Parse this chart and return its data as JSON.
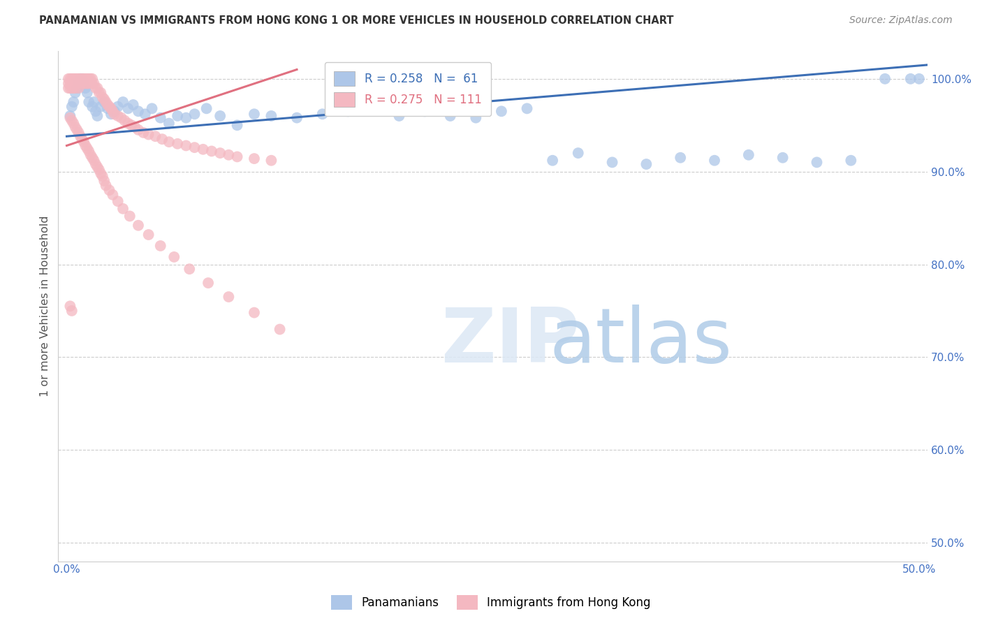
{
  "title": "PANAMANIAN VS IMMIGRANTS FROM HONG KONG 1 OR MORE VEHICLES IN HOUSEHOLD CORRELATION CHART",
  "source": "Source: ZipAtlas.com",
  "ylabel": "1 or more Vehicles in Household",
  "xmin": -0.005,
  "xmax": 0.505,
  "ymin": 0.48,
  "ymax": 1.03,
  "xticks": [
    0.0,
    0.1,
    0.2,
    0.3,
    0.4,
    0.5
  ],
  "xtick_labels": [
    "0.0%",
    "",
    "",
    "",
    "",
    "50.0%"
  ],
  "ytick_positions": [
    1.0,
    0.9,
    0.8,
    0.7,
    0.6,
    0.5
  ],
  "ytick_labels": [
    "100.0%",
    "90.0%",
    "80.0%",
    "70.0%",
    "60.0%",
    "50.0%"
  ],
  "legend_label_blue": "Panamanians",
  "legend_label_pink": "Immigrants from Hong Kong",
  "title_color": "#333333",
  "source_color": "#888888",
  "tick_color": "#4472c4",
  "blue_scatter_color": "#adc6e8",
  "pink_scatter_color": "#f4b8c1",
  "blue_line_color": "#3d6fb5",
  "pink_line_color": "#e07080",
  "blue_line_x": [
    0.0,
    0.505
  ],
  "blue_line_y": [
    0.938,
    1.015
  ],
  "pink_line_x": [
    0.0,
    0.135
  ],
  "pink_line_y": [
    0.928,
    1.01
  ],
  "blue_points_x": [
    0.002,
    0.003,
    0.004,
    0.005,
    0.006,
    0.007,
    0.008,
    0.009,
    0.01,
    0.011,
    0.012,
    0.013,
    0.015,
    0.016,
    0.017,
    0.018,
    0.02,
    0.022,
    0.024,
    0.026,
    0.028,
    0.03,
    0.033,
    0.036,
    0.039,
    0.042,
    0.046,
    0.05,
    0.055,
    0.06,
    0.065,
    0.07,
    0.075,
    0.082,
    0.09,
    0.1,
    0.11,
    0.12,
    0.135,
    0.15,
    0.165,
    0.18,
    0.195,
    0.21,
    0.225,
    0.24,
    0.255,
    0.27,
    0.285,
    0.3,
    0.32,
    0.34,
    0.36,
    0.38,
    0.4,
    0.42,
    0.44,
    0.46,
    0.48,
    0.495,
    0.5
  ],
  "blue_points_y": [
    0.96,
    0.97,
    0.975,
    0.985,
    0.99,
    0.995,
    1.0,
    1.0,
    0.995,
    0.99,
    0.985,
    0.975,
    0.97,
    0.975,
    0.965,
    0.96,
    0.97,
    0.975,
    0.968,
    0.962,
    0.965,
    0.97,
    0.975,
    0.968,
    0.972,
    0.965,
    0.962,
    0.968,
    0.958,
    0.952,
    0.96,
    0.958,
    0.962,
    0.968,
    0.96,
    0.95,
    0.962,
    0.96,
    0.958,
    0.962,
    0.965,
    0.97,
    0.96,
    0.965,
    0.96,
    0.958,
    0.965,
    0.968,
    0.912,
    0.92,
    0.91,
    0.908,
    0.915,
    0.912,
    0.918,
    0.915,
    0.91,
    0.912,
    1.0,
    1.0,
    1.0
  ],
  "pink_points_x": [
    0.001,
    0.001,
    0.001,
    0.002,
    0.002,
    0.002,
    0.003,
    0.003,
    0.003,
    0.004,
    0.004,
    0.004,
    0.005,
    0.005,
    0.005,
    0.006,
    0.006,
    0.007,
    0.007,
    0.007,
    0.008,
    0.008,
    0.009,
    0.009,
    0.01,
    0.01,
    0.011,
    0.011,
    0.012,
    0.012,
    0.013,
    0.013,
    0.014,
    0.015,
    0.015,
    0.016,
    0.017,
    0.018,
    0.019,
    0.02,
    0.021,
    0.022,
    0.023,
    0.024,
    0.025,
    0.026,
    0.027,
    0.028,
    0.03,
    0.032,
    0.034,
    0.036,
    0.038,
    0.04,
    0.042,
    0.045,
    0.048,
    0.052,
    0.056,
    0.06,
    0.065,
    0.07,
    0.075,
    0.08,
    0.085,
    0.09,
    0.095,
    0.1,
    0.11,
    0.12,
    0.002,
    0.003,
    0.004,
    0.005,
    0.006,
    0.007,
    0.008,
    0.009,
    0.01,
    0.011,
    0.012,
    0.013,
    0.014,
    0.015,
    0.016,
    0.017,
    0.018,
    0.019,
    0.02,
    0.021,
    0.022,
    0.023,
    0.025,
    0.027,
    0.03,
    0.033,
    0.037,
    0.042,
    0.048,
    0.055,
    0.063,
    0.072,
    0.083,
    0.095,
    0.11,
    0.125,
    0.002,
    0.003
  ],
  "pink_points_y": [
    1.0,
    0.995,
    0.99,
    1.0,
    0.995,
    0.99,
    1.0,
    0.995,
    0.99,
    1.0,
    0.995,
    0.99,
    1.0,
    0.995,
    0.99,
    1.0,
    0.995,
    1.0,
    0.995,
    0.99,
    1.0,
    0.995,
    1.0,
    0.995,
    1.0,
    0.995,
    1.0,
    0.995,
    1.0,
    0.995,
    1.0,
    0.995,
    1.0,
    1.0,
    0.995,
    0.995,
    0.99,
    0.99,
    0.985,
    0.985,
    0.98,
    0.978,
    0.975,
    0.972,
    0.97,
    0.968,
    0.965,
    0.962,
    0.96,
    0.958,
    0.955,
    0.952,
    0.95,
    0.948,
    0.945,
    0.942,
    0.94,
    0.938,
    0.935,
    0.932,
    0.93,
    0.928,
    0.926,
    0.924,
    0.922,
    0.92,
    0.918,
    0.916,
    0.914,
    0.912,
    0.958,
    0.955,
    0.952,
    0.948,
    0.945,
    0.942,
    0.938,
    0.935,
    0.932,
    0.928,
    0.925,
    0.922,
    0.918,
    0.915,
    0.912,
    0.908,
    0.905,
    0.902,
    0.898,
    0.895,
    0.89,
    0.885,
    0.88,
    0.875,
    0.868,
    0.86,
    0.852,
    0.842,
    0.832,
    0.82,
    0.808,
    0.795,
    0.78,
    0.765,
    0.748,
    0.73,
    0.755,
    0.75
  ]
}
